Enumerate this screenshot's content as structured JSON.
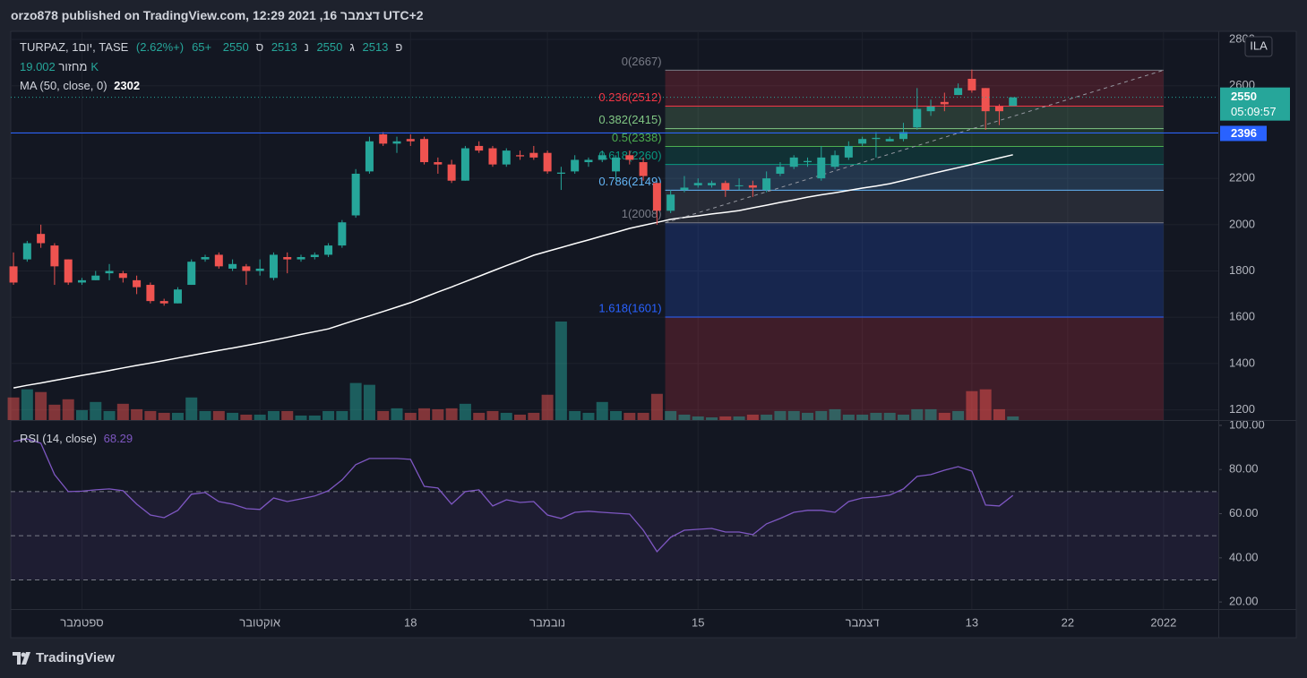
{
  "header": {
    "title": "orzo878 published on TradingView.com, 12:29 2021 ,16 דצמבר UTC+2"
  },
  "footer": {
    "brand": "TradingView"
  },
  "chart_data": [
    {
      "type": "candlestick",
      "symbol": "TURPAZ, 1יום, TASE",
      "ohlc_labels": [
        "פ",
        "ג",
        "נ",
        "ס"
      ],
      "change": "+65",
      "change_pct": "(+2.62%)",
      "currency": "ILA",
      "countdown": "05:09:57",
      "up_color": "#26a69a",
      "down_color": "#ef5350",
      "xlim": [
        -0.2,
        88
      ],
      "xticks": [
        {
          "value": 5,
          "label": "ספטמבר"
        },
        {
          "value": 18,
          "label": "אוקטובר"
        },
        {
          "value": 29,
          "label": "18"
        },
        {
          "value": 39,
          "label": "נובמבר"
        },
        {
          "value": 50,
          "label": "15"
        },
        {
          "value": 62,
          "label": "דצמבר"
        },
        {
          "value": 70,
          "label": "13"
        },
        {
          "value": 77,
          "label": "22"
        },
        {
          "value": 84,
          "label": "2022"
        }
      ],
      "ylim": [
        1156,
        2835
      ],
      "yticks": [
        1200,
        1400,
        1600,
        1800,
        2000,
        2200,
        2400,
        2600,
        2800
      ],
      "grid": true,
      "open": [
        1820,
        1850,
        1960,
        1910,
        1850,
        1750,
        1760,
        1790,
        1790,
        1760,
        1740,
        1670,
        1660,
        1740,
        1850,
        1870,
        1810,
        1820,
        1800,
        1770,
        1860,
        1850,
        1860,
        1870,
        1910,
        2040,
        2230,
        2390,
        2350,
        2370,
        2370,
        2270,
        2260,
        2190,
        2340,
        2330,
        2260,
        2300,
        2310,
        2310,
        2220,
        2230,
        2270,
        2280,
        2230,
        2300,
        2270,
        2180,
        2060,
        2150,
        2170,
        2170,
        2180,
        2170,
        2170,
        2150,
        2220,
        2250,
        2270,
        2200,
        2250,
        2290,
        2350,
        2370,
        2360,
        2370,
        2420,
        2490,
        2530,
        2560,
        2630,
        2590,
        2510,
        2513
      ],
      "high": [
        1880,
        1930,
        2000,
        1920,
        1850,
        1770,
        1800,
        1830,
        1800,
        1780,
        1750,
        1680,
        1730,
        1850,
        1870,
        1880,
        1850,
        1830,
        1850,
        1880,
        1880,
        1870,
        1880,
        1920,
        2020,
        2240,
        2380,
        2400,
        2380,
        2390,
        2380,
        2290,
        2280,
        2340,
        2360,
        2340,
        2330,
        2320,
        2340,
        2320,
        2250,
        2300,
        2290,
        2320,
        2300,
        2320,
        2290,
        2180,
        2150,
        2210,
        2200,
        2190,
        2190,
        2200,
        2190,
        2230,
        2270,
        2300,
        2290,
        2340,
        2320,
        2360,
        2380,
        2400,
        2380,
        2440,
        2590,
        2540,
        2570,
        2610,
        2670,
        2590,
        2520,
        2550
      ],
      "low": [
        1740,
        1840,
        1900,
        1740,
        1740,
        1740,
        1760,
        1760,
        1750,
        1700,
        1660,
        1650,
        1660,
        1740,
        1840,
        1810,
        1800,
        1740,
        1780,
        1760,
        1790,
        1840,
        1850,
        1860,
        1900,
        2030,
        2220,
        2340,
        2310,
        2340,
        2260,
        2220,
        2180,
        2190,
        2310,
        2250,
        2250,
        2280,
        2280,
        2220,
        2150,
        2220,
        2250,
        2270,
        2190,
        2260,
        2190,
        2000,
        2050,
        2140,
        2160,
        2160,
        2120,
        2150,
        2120,
        2140,
        2210,
        2240,
        2250,
        2190,
        2240,
        2280,
        2340,
        2290,
        2360,
        2360,
        2410,
        2470,
        2490,
        2560,
        2570,
        2410,
        2430,
        2513
      ],
      "close": [
        1750,
        1920,
        1920,
        1820,
        1750,
        1760,
        1780,
        1800,
        1770,
        1730,
        1670,
        1660,
        1720,
        1840,
        1860,
        1820,
        1830,
        1800,
        1810,
        1870,
        1850,
        1860,
        1870,
        1910,
        2010,
        2220,
        2360,
        2350,
        2360,
        2360,
        2270,
        2260,
        2190,
        2330,
        2320,
        2260,
        2320,
        2295,
        2290,
        2230,
        2225,
        2280,
        2280,
        2300,
        2290,
        2280,
        2210,
        2060,
        2130,
        2160,
        2180,
        2180,
        2150,
        2170,
        2160,
        2200,
        2250,
        2290,
        2275,
        2290,
        2300,
        2340,
        2370,
        2375,
        2370,
        2400,
        2500,
        2510,
        2520,
        2590,
        2580,
        2490,
        2490,
        2550
      ],
      "volume": {
        "name": "מחזור",
        "values": [
          118750,
          161500,
          147250,
          80750,
          109250,
          52250,
          95000,
          47500,
          85500,
          57000,
          47500,
          38000,
          38000,
          118750,
          47500,
          47500,
          38000,
          28500,
          28500,
          47500,
          47500,
          23750,
          23750,
          47500,
          47500,
          194750,
          185250,
          47500,
          61750,
          38000,
          61750,
          57000,
          61750,
          85500,
          38000,
          47500,
          38000,
          28500,
          38000,
          133000,
          517750,
          47500,
          38000,
          95000,
          47500,
          38000,
          38000,
          137750,
          47500,
          28500,
          19000,
          14250,
          19000,
          19000,
          28500,
          28500,
          47500,
          47500,
          38000,
          47500,
          57000,
          28500,
          28500,
          38000,
          38000,
          28500,
          57000,
          57000,
          38000,
          47500,
          152000,
          161500,
          57000,
          19002
        ],
        "value_labels": [
          null,
          null,
          null,
          null,
          null,
          null,
          null,
          null,
          null,
          null,
          null,
          null,
          null,
          null,
          null,
          null,
          null,
          null,
          null,
          null,
          null,
          null,
          null,
          null,
          null,
          null,
          null,
          null,
          null,
          null,
          null,
          null,
          null,
          null,
          null,
          null,
          null,
          null,
          null,
          null,
          null,
          null,
          null,
          null,
          null,
          null,
          null,
          null,
          null,
          null,
          null,
          null,
          null,
          null,
          null,
          null,
          null,
          null,
          null,
          null,
          null,
          null,
          null,
          null,
          null,
          null,
          null,
          null,
          null,
          null,
          null,
          null,
          null,
          "19.002K"
        ]
      },
      "ma": {
        "name": "MA (50, close, 0)",
        "color": "#ffffff",
        "values": [
          1295,
          1306,
          1316,
          1327,
          1338,
          1349,
          1359,
          1370,
          1381,
          1392,
          1402,
          1413,
          1424,
          1435,
          1446,
          1457,
          1467,
          1478,
          1489,
          1501,
          1513,
          1526,
          1538,
          1550,
          1569,
          1588,
          1606,
          1625,
          1644,
          1663,
          1686,
          1709,
          1731,
          1754,
          1777,
          1800,
          1823,
          1845,
          1868,
          1885,
          1901,
          1918,
          1934,
          1951,
          1967,
          1984,
          1997,
          2010,
          2023,
          2031,
          2038,
          2046,
          2053,
          2061,
          2073,
          2084,
          2096,
          2107,
          2119,
          2129,
          2138,
          2148,
          2158,
          2167,
          2177,
          2191,
          2205,
          2219,
          2233,
          2246,
          2260,
          2274,
          2288,
          2302
        ]
      },
      "hline": {
        "value": 2396,
        "color": "#2962ff"
      },
      "fib": {
        "xrange": [
          47.6,
          84
        ],
        "extension_color": "#f23645",
        "levels": [
          {
            "ratio": 0,
            "value": 2667,
            "label": "0(2667)",
            "color": "#787b86"
          },
          {
            "ratio": 0.236,
            "value": 2512,
            "label": "0.236(2512)",
            "color": "#f23645"
          },
          {
            "ratio": 0.382,
            "value": 2415,
            "label": "0.382(2415)",
            "color": "#81c784"
          },
          {
            "ratio": 0.5,
            "value": 2338,
            "label": "0.5(2338)",
            "color": "#4caf50"
          },
          {
            "ratio": 0.618,
            "value": 2260,
            "label": "0.618(2260)",
            "color": "#089981"
          },
          {
            "ratio": 0.786,
            "value": 2149,
            "label": "0.786(2149)",
            "color": "#64b5f6"
          },
          {
            "ratio": 1,
            "value": 2008,
            "label": "1(2008)",
            "color": "#787b86"
          },
          {
            "ratio": 1.618,
            "value": 1601,
            "label": "1.618(1601)",
            "color": "#2962ff"
          }
        ]
      }
    },
    {
      "type": "line",
      "name": "RSI (14, close)",
      "color": "#7e57c2",
      "ylim": [
        16.8,
        102
      ],
      "yticks": [
        {
          "value": 20,
          "label": "20.00"
        },
        {
          "value": 40,
          "label": "40.00"
        },
        {
          "value": 60,
          "label": "60.00"
        },
        {
          "value": 80,
          "label": "80.00"
        },
        {
          "value": 100,
          "label": "100.00"
        }
      ],
      "band": [
        30,
        70
      ],
      "hlines": [
        30,
        50,
        70
      ],
      "values": [
        92.7,
        93.9,
        91.9,
        77.7,
        70.0,
        70.2,
        70.8,
        71.2,
        70.4,
        64.3,
        59.4,
        58.2,
        61.5,
        68.8,
        69.6,
        65.5,
        64.3,
        62.3,
        61.9,
        67.1,
        65.5,
        66.7,
        68.0,
        70.4,
        75.3,
        82.2,
        85.0,
        85.0,
        85.0,
        84.6,
        72.4,
        71.6,
        64.3,
        70.0,
        70.8,
        63.5,
        66.3,
        65.1,
        65.5,
        59.4,
        57.8,
        60.6,
        61.1,
        60.6,
        60.2,
        59.8,
        52.5,
        42.8,
        49.3,
        52.5,
        52.9,
        53.3,
        51.7,
        51.7,
        50.5,
        55.4,
        57.8,
        60.6,
        61.5,
        61.5,
        60.6,
        65.5,
        67.1,
        67.5,
        68.4,
        71.2,
        76.9,
        77.7,
        79.7,
        81.3,
        79.3,
        63.9,
        63.5,
        68.29
      ]
    }
  ]
}
